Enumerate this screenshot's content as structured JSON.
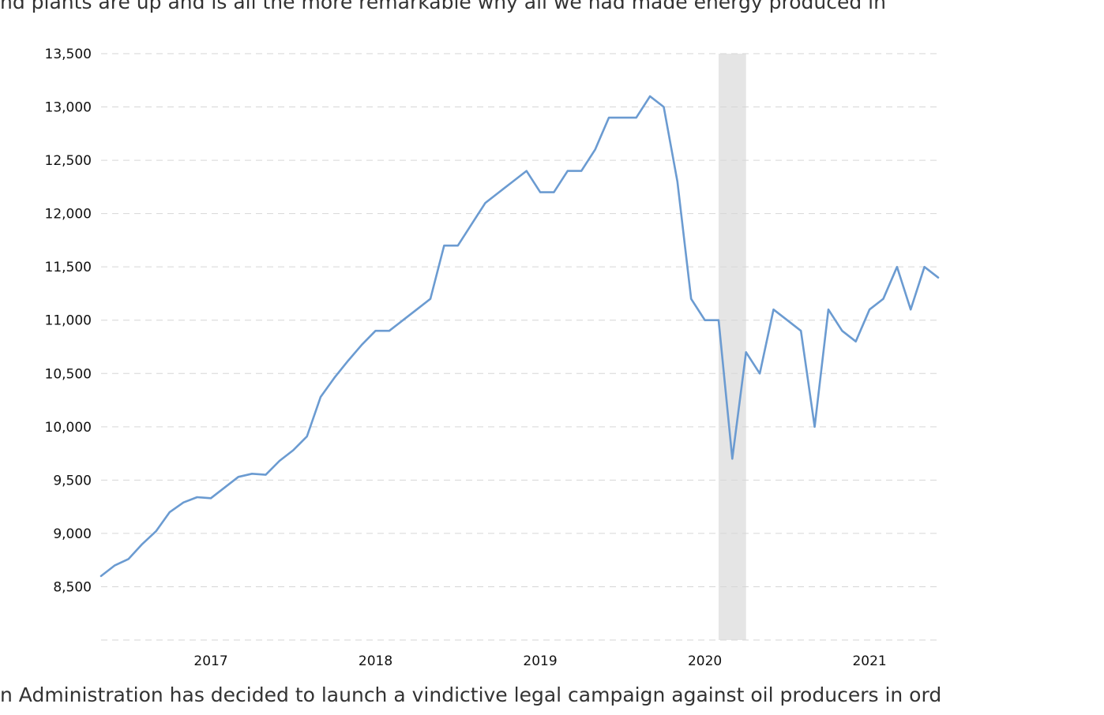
{
  "article": {
    "line_above": "nd plants are up and is all the more remarkable why all we had made energy produced in",
    "line_below": "n Administration has decided to launch a vindictive legal campaign against oil producers in ord"
  },
  "chart_data": {
    "type": "line",
    "title": "",
    "xlabel": "",
    "ylabel": "",
    "ylim": [
      8000,
      13500
    ],
    "xlim": [
      "2016-05",
      "2021-06"
    ],
    "grid": true,
    "x_ticks": [
      "2017",
      "2018",
      "2019",
      "2020",
      "2021"
    ],
    "y_ticks": [
      "8,500",
      "9,000",
      "9,500",
      "10,000",
      "10,500",
      "11,000",
      "11,500",
      "12,000",
      "12,500",
      "13,000",
      "13,500"
    ],
    "recession_band": {
      "start": "2020-02",
      "end": "2020-04",
      "color": "#e5e5e5"
    },
    "series": [
      {
        "color": "#6b9bd1",
        "x": [
          "2016-05",
          "2016-06",
          "2016-07",
          "2016-08",
          "2016-09",
          "2016-10",
          "2016-11",
          "2016-12",
          "2017-01",
          "2017-02",
          "2017-03",
          "2017-04",
          "2017-05",
          "2017-06",
          "2017-07",
          "2017-08",
          "2017-09",
          "2017-10",
          "2017-11",
          "2017-12",
          "2018-01",
          "2018-02",
          "2018-03",
          "2018-04",
          "2018-05",
          "2018-06",
          "2018-07",
          "2018-08",
          "2018-09",
          "2018-10",
          "2018-11",
          "2018-12",
          "2019-01",
          "2019-02",
          "2019-03",
          "2019-04",
          "2019-05",
          "2019-06",
          "2019-07",
          "2019-08",
          "2019-09",
          "2019-10",
          "2019-11",
          "2019-12",
          "2020-01",
          "2020-02",
          "2020-03",
          "2020-04",
          "2020-05",
          "2020-06",
          "2020-07",
          "2020-08",
          "2020-09",
          "2020-10",
          "2020-11",
          "2020-12",
          "2021-01",
          "2021-02",
          "2021-03",
          "2021-04",
          "2021-05",
          "2021-06"
        ],
        "values": [
          8600,
          8700,
          8760,
          8900,
          9020,
          9200,
          9290,
          9340,
          9330,
          9430,
          9530,
          9560,
          9550,
          9680,
          9780,
          9910,
          10280,
          10460,
          10620,
          10770,
          10900,
          10900,
          11000,
          11100,
          11200,
          11700,
          11700,
          11900,
          12100,
          12200,
          12300,
          12400,
          12200,
          12200,
          12400,
          12400,
          12600,
          12900,
          12900,
          12900,
          13100,
          13000,
          12300,
          11200,
          11000,
          11000,
          9700,
          10700,
          10500,
          11100,
          11000,
          10900,
          10000,
          11100,
          10900,
          10800,
          11100,
          11200,
          11500,
          11100,
          11500,
          11400
        ]
      }
    ]
  }
}
